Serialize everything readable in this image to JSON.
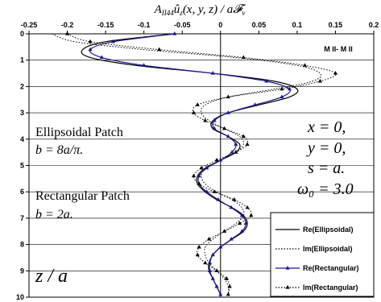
{
  "chart_data": {
    "type": "line",
    "title": "A_{II44} û_z(x, y, z) / a𝓕_v",
    "title_parts": {
      "main": "A",
      "sub": "II44",
      "body": "û",
      "sub2": "z",
      "rest": "(x, y, z) / a𝓕",
      "sub3": "v"
    },
    "x_ticks": [
      "-0.25",
      "-0.2",
      "-0.15",
      "-0.1",
      "-0.05",
      "0",
      "0.05",
      "0.1",
      "0.15",
      "0.2"
    ],
    "y_ticks": [
      "0",
      "1",
      "2",
      "3",
      "4",
      "5",
      "6",
      "7",
      "8",
      "9",
      "10"
    ],
    "xlim": [
      -0.25,
      0.2
    ],
    "ylim": [
      0,
      10
    ],
    "y_axis_label": "z / a",
    "y_inverted": true,
    "x_axis_position": "top",
    "grid": {
      "horizontal": true,
      "vertical": false
    },
    "mode_label": "M II- M II",
    "params": [
      "x = 0,",
      "y = 0,",
      "s = a.",
      "ω₀ = 3.0"
    ],
    "annotations": [
      {
        "name": "Ellipsoidal Patch",
        "formula": "b = 8a/π."
      },
      {
        "name": "Rectangular Patch",
        "formula": "b = 2a."
      }
    ],
    "legend_position": "lower-right",
    "series": [
      {
        "name": "Re(Ellipsoidal)",
        "style": "solid",
        "marker": "none",
        "color": "#000000",
        "z": [
          0,
          0.3,
          0.6,
          0.9,
          1.2,
          1.5,
          1.8,
          2.1,
          2.4,
          2.7,
          3.0,
          3.3,
          3.6,
          3.9,
          4.2,
          4.5,
          4.8,
          5.1,
          5.4,
          5.7,
          6.0,
          6.3,
          6.6,
          6.9,
          7.2,
          7.5,
          7.8,
          8.1,
          8.4,
          8.7,
          9.0,
          9.3,
          9.6,
          9.9
        ],
        "values": [
          -0.06,
          -0.15,
          -0.18,
          -0.17,
          -0.11,
          -0.01,
          0.07,
          0.1,
          0.09,
          0.05,
          0.01,
          -0.01,
          -0.01,
          0.01,
          0.025,
          0.02,
          0.0,
          -0.02,
          -0.03,
          -0.03,
          -0.02,
          -0.005,
          0.015,
          0.03,
          0.035,
          0.03,
          0.015,
          0.0,
          -0.01,
          -0.015,
          -0.015,
          -0.01,
          -0.005,
          0.0
        ]
      },
      {
        "name": "Im(Ellipsoidal)",
        "style": "dotted",
        "marker": "none",
        "color": "#000000",
        "z": [
          0,
          0.3,
          0.6,
          0.9,
          1.2,
          1.5,
          1.8,
          2.1,
          2.4,
          2.7,
          3.0,
          3.3,
          3.6,
          3.9,
          4.2,
          4.5,
          4.8,
          5.1,
          5.4,
          5.7,
          6.0,
          6.3,
          6.6,
          6.9,
          7.2,
          7.5,
          7.8,
          8.1,
          8.4,
          8.7,
          9.0,
          9.3,
          9.6,
          9.9
        ],
        "values": [
          -0.22,
          -0.19,
          -0.1,
          0.02,
          0.1,
          0.13,
          0.12,
          0.07,
          0.01,
          -0.02,
          -0.025,
          -0.015,
          0.005,
          0.025,
          0.03,
          0.02,
          0.0,
          -0.02,
          -0.025,
          -0.02,
          -0.005,
          0.015,
          0.028,
          0.03,
          0.02,
          0.005,
          -0.01,
          -0.02,
          -0.02,
          -0.015,
          -0.005,
          0.005,
          0.01,
          0.01
        ]
      },
      {
        "name": "Re(Rectangular)",
        "style": "solid",
        "marker": "triangle",
        "color": "#1a1a8c",
        "z": [
          0,
          0.3,
          0.6,
          0.9,
          1.2,
          1.5,
          1.8,
          2.1,
          2.4,
          2.7,
          3.0,
          3.3,
          3.6,
          3.9,
          4.2,
          4.5,
          4.8,
          5.1,
          5.4,
          5.7,
          6.0,
          6.3,
          6.6,
          6.9,
          7.2,
          7.5,
          7.8,
          8.1,
          8.4,
          8.7,
          9.0,
          9.3,
          9.6,
          9.9
        ],
        "values": [
          -0.06,
          -0.14,
          -0.17,
          -0.155,
          -0.1,
          -0.01,
          0.06,
          0.09,
          0.08,
          0.045,
          0.01,
          -0.008,
          -0.008,
          0.01,
          0.02,
          0.015,
          0.0,
          -0.018,
          -0.028,
          -0.028,
          -0.018,
          -0.003,
          0.014,
          0.028,
          0.033,
          0.028,
          0.014,
          0.0,
          -0.01,
          -0.014,
          -0.014,
          -0.01,
          -0.005,
          0.0
        ]
      },
      {
        "name": "Im(Rectangular)",
        "style": "dotted",
        "marker": "triangle",
        "color": "#000000",
        "z": [
          0,
          0.3,
          0.6,
          0.9,
          1.2,
          1.5,
          1.8,
          2.1,
          2.4,
          2.7,
          3.0,
          3.3,
          3.6,
          3.9,
          4.2,
          4.5,
          4.8,
          5.1,
          5.4,
          5.7,
          6.0,
          6.3,
          6.6,
          6.9,
          7.2,
          7.5,
          7.8,
          8.1,
          8.4,
          8.7,
          9.0,
          9.3,
          9.6,
          9.9
        ],
        "values": [
          -0.2,
          -0.17,
          -0.08,
          0.03,
          0.11,
          0.15,
          0.13,
          0.08,
          0.01,
          -0.03,
          -0.035,
          -0.02,
          0.005,
          0.03,
          0.035,
          0.02,
          -0.005,
          -0.025,
          -0.035,
          -0.028,
          -0.008,
          0.018,
          0.035,
          0.04,
          0.025,
          0.005,
          -0.015,
          -0.028,
          -0.03,
          -0.02,
          -0.005,
          0.008,
          0.012,
          0.01
        ]
      }
    ]
  }
}
